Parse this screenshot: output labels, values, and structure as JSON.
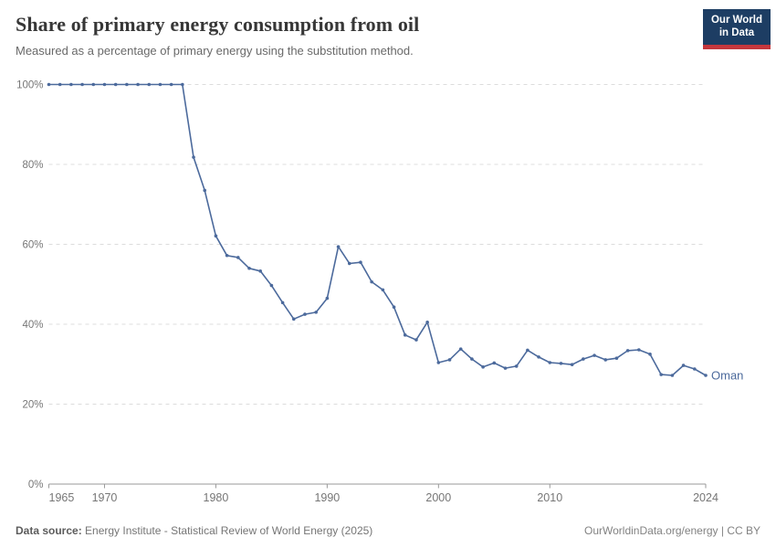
{
  "header": {
    "title": "Share of primary energy consumption from oil",
    "subtitle": "Measured as a percentage of primary energy using the substitution method.",
    "logo": {
      "line1": "Our World",
      "line2": "in Data"
    }
  },
  "footer": {
    "source_label": "Data source:",
    "source_text": " Energy Institute - Statistical Review of World Energy (2025)",
    "right_text": "OurWorldinData.org/energy | CC BY"
  },
  "colors": {
    "line": "#4c6a9c",
    "grid": "#dcdcdc",
    "axis": "#999999",
    "tick_label": "#767676",
    "logo_navy": "#1d3d63",
    "logo_red": "#c5373d"
  },
  "chart_data": {
    "type": "line",
    "title": "Share of primary energy consumption from oil",
    "subtitle": "Measured as a percentage of primary energy using the substitution method.",
    "xlabel": "",
    "ylabel": "",
    "xlim": [
      1965,
      2024
    ],
    "ylim": [
      0,
      100
    ],
    "grid": "horizontal-dashed",
    "legend_position": "end-of-line",
    "yticks": [
      {
        "value": 0,
        "label": "0%"
      },
      {
        "value": 20,
        "label": "20%"
      },
      {
        "value": 40,
        "label": "40%"
      },
      {
        "value": 60,
        "label": "60%"
      },
      {
        "value": 80,
        "label": "80%"
      },
      {
        "value": 100,
        "label": "100%"
      }
    ],
    "xticks": [
      {
        "value": 1965,
        "label": "1965"
      },
      {
        "value": 1970,
        "label": "1970"
      },
      {
        "value": 1980,
        "label": "1980"
      },
      {
        "value": 1990,
        "label": "1990"
      },
      {
        "value": 2000,
        "label": "2000"
      },
      {
        "value": 2010,
        "label": "2010"
      },
      {
        "value": 2024,
        "label": "2024"
      }
    ],
    "series": [
      {
        "name": "Oman",
        "x": [
          1965,
          1966,
          1967,
          1968,
          1969,
          1970,
          1971,
          1972,
          1973,
          1974,
          1975,
          1976,
          1977,
          1978,
          1979,
          1980,
          1981,
          1982,
          1983,
          1984,
          1985,
          1986,
          1987,
          1988,
          1989,
          1990,
          1991,
          1992,
          1993,
          1994,
          1995,
          1996,
          1997,
          1998,
          1999,
          2000,
          2001,
          2002,
          2003,
          2004,
          2005,
          2006,
          2007,
          2008,
          2009,
          2010,
          2011,
          2012,
          2013,
          2014,
          2015,
          2016,
          2017,
          2018,
          2019,
          2020,
          2021,
          2022,
          2023,
          2024
        ],
        "values": [
          100,
          100,
          100,
          100,
          100,
          100,
          100,
          100,
          100,
          100,
          100,
          100,
          100,
          81.8,
          73.5,
          62.1,
          57.2,
          56.7,
          54,
          53.3,
          49.7,
          45.4,
          41.3,
          42.5,
          43,
          46.5,
          59.4,
          55.2,
          55.5,
          50.6,
          48.6,
          44.3,
          37.3,
          36.1,
          40.5,
          30.4,
          31.1,
          33.8,
          31.3,
          29.3,
          30.3,
          29,
          29.5,
          33.5,
          31.8,
          30.4,
          30.2,
          29.9,
          31.3,
          32.2,
          31.1,
          31.5,
          33.4,
          33.6,
          32.5,
          27.4,
          27.2,
          29.7,
          28.8,
          27.2
        ]
      }
    ]
  }
}
